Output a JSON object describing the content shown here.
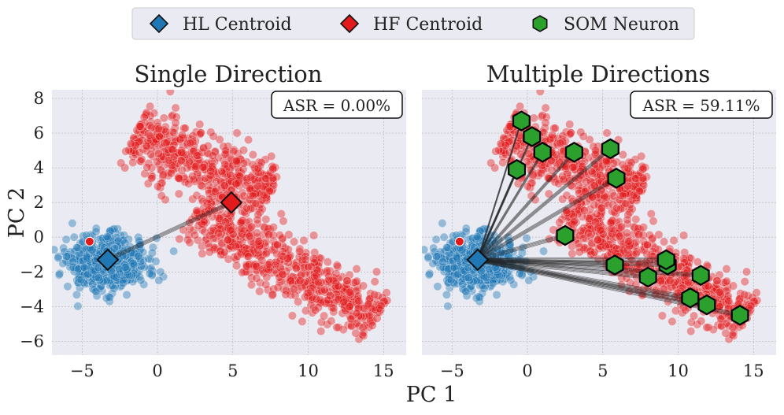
{
  "chart_data": [
    {
      "type": "scatter",
      "title": "Single Direction",
      "annotation": "ASR = 0.00%",
      "xlabel": "PC 1",
      "ylabel": "PC 2",
      "xlim": [
        -7,
        16.5
      ],
      "ylim": [
        -6.8,
        8.5
      ],
      "xticks": [
        -5,
        0,
        5,
        10,
        15
      ],
      "yticks": [
        -6,
        -4,
        -2,
        0,
        2,
        4,
        6,
        8
      ],
      "grid": true,
      "hl_centroid": [
        -3.3,
        -1.3
      ],
      "hf_centroid": [
        4.9,
        2.0
      ],
      "som_neurons": [],
      "lines_from_hl_to": [
        [
          4.9,
          2.0
        ]
      ],
      "clusters": [
        {
          "name": "HL points",
          "color": "#1f77b4",
          "shape": "blob",
          "center": [
            -3.3,
            -1.5
          ],
          "spread": [
            2.4,
            1.0
          ],
          "n": 650
        },
        {
          "name": "HF points upper",
          "color": "#e31a1c",
          "shape": "band",
          "from": [
            -1.5,
            6.0
          ],
          "to": [
            7.5,
            2.5
          ],
          "width": 1.4,
          "n": 520
        },
        {
          "name": "HF points lower",
          "color": "#e31a1c",
          "shape": "band",
          "from": [
            2.5,
            1.5
          ],
          "to": [
            14.5,
            -4.8
          ],
          "width": 1.3,
          "n": 620
        }
      ],
      "outlier_red_point": [
        -4.5,
        -0.25
      ]
    },
    {
      "type": "scatter",
      "title": "Multiple Directions",
      "annotation": "ASR = 59.11%",
      "xlabel": "PC 1",
      "ylabel": "",
      "xlim": [
        -7,
        16.5
      ],
      "ylim": [
        -6.8,
        8.5
      ],
      "xticks": [
        -5,
        0,
        5,
        10,
        15
      ],
      "yticks": [
        -6,
        -4,
        -2,
        0,
        2,
        4,
        6,
        8
      ],
      "grid": true,
      "hl_centroid": [
        -3.3,
        -1.3
      ],
      "hf_centroid": null,
      "som_neurons": [
        [
          -0.4,
          6.7
        ],
        [
          0.3,
          5.8
        ],
        [
          1.0,
          4.9
        ],
        [
          -0.7,
          3.9
        ],
        [
          3.1,
          4.9
        ],
        [
          5.5,
          5.1
        ],
        [
          5.9,
          3.4
        ],
        [
          2.5,
          0.1
        ],
        [
          5.8,
          -1.6
        ],
        [
          9.3,
          -1.6
        ],
        [
          9.2,
          -1.3
        ],
        [
          8.0,
          -2.3
        ],
        [
          11.5,
          -2.2
        ],
        [
          10.8,
          -3.5
        ],
        [
          11.9,
          -3.9
        ],
        [
          14.1,
          -4.5
        ]
      ],
      "clusters": [
        {
          "name": "HL points",
          "color": "#1f77b4",
          "shape": "blob",
          "center": [
            -3.3,
            -1.5
          ],
          "spread": [
            2.4,
            1.0
          ],
          "n": 650
        },
        {
          "name": "HF points upper",
          "color": "#e31a1c",
          "shape": "band",
          "from": [
            -1.5,
            6.0
          ],
          "to": [
            7.5,
            2.5
          ],
          "width": 1.4,
          "n": 520
        },
        {
          "name": "HF points lower",
          "color": "#e31a1c",
          "shape": "band",
          "from": [
            2.5,
            1.5
          ],
          "to": [
            14.5,
            -4.8
          ],
          "width": 1.3,
          "n": 620
        }
      ],
      "outlier_red_point": [
        -4.5,
        -0.25
      ]
    }
  ],
  "legend": {
    "placement": "top-center",
    "items": [
      {
        "label": "HL Centroid",
        "marker": "diamond",
        "color": "#1f77b4"
      },
      {
        "label": "HF Centroid",
        "marker": "diamond",
        "color": "#e31a1c"
      },
      {
        "label": "SOM Neuron",
        "marker": "hexagon",
        "color": "#2ca02c"
      }
    ]
  },
  "shared_xlabel": "PC 1",
  "colors": {
    "panel_bg": "#eaeaf2",
    "grid": "#b0b0b0",
    "hl": "#1f77b4",
    "hf": "#e31a1c",
    "som": "#2ca02c"
  }
}
